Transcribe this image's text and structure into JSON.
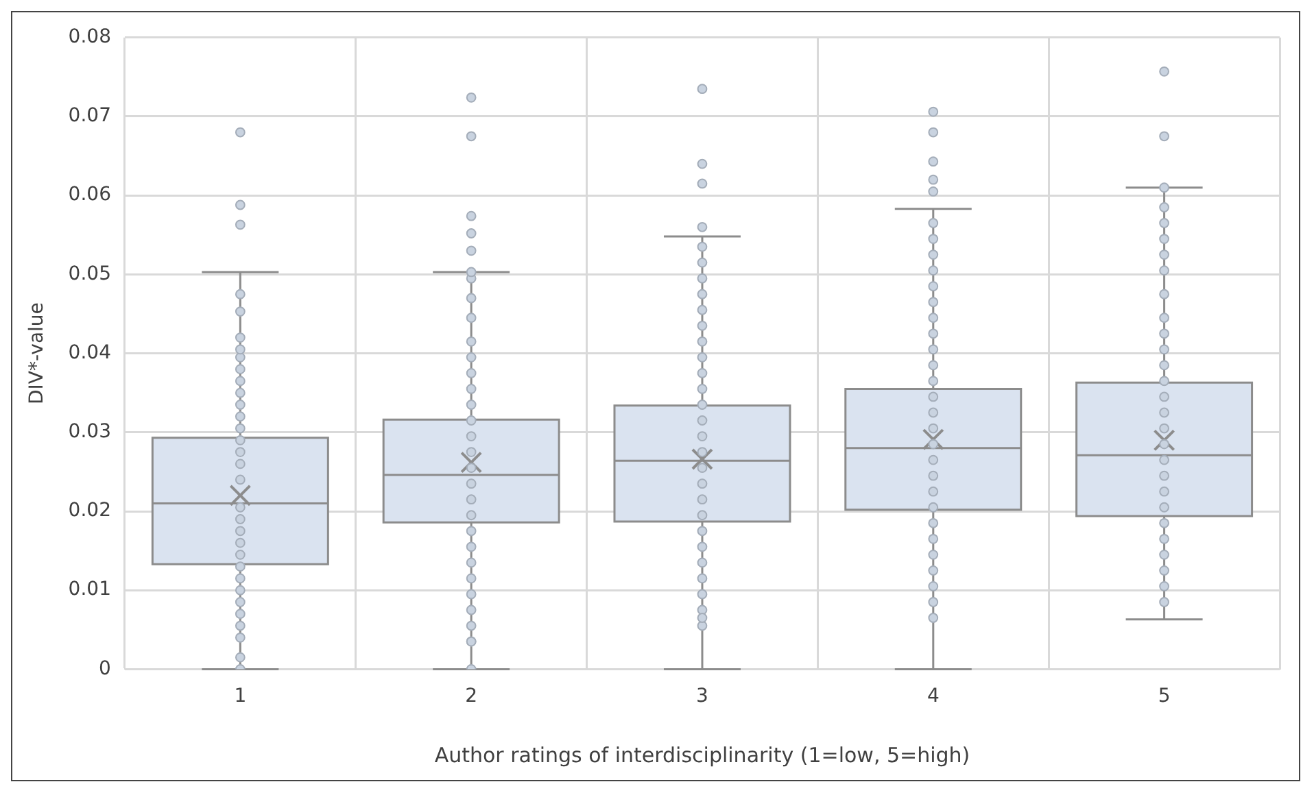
{
  "chart_data": {
    "type": "box",
    "xlabel": "Author ratings of interdisciplinarity (1=low, 5=high)",
    "ylabel": "DIV*-value",
    "categories": [
      "1",
      "2",
      "3",
      "4",
      "5"
    ],
    "boxes": [
      {
        "low": 0,
        "q1": 0.0133,
        "median": 0.021,
        "q3": 0.0293,
        "high": 0.0503,
        "mean": 0.022,
        "outliers": [
          0.068,
          0.0588,
          0.0563
        ]
      },
      {
        "low": 0,
        "q1": 0.0186,
        "median": 0.0246,
        "q3": 0.0316,
        "high": 0.0503,
        "mean": 0.0262,
        "outliers": [
          0.0724,
          0.0675,
          0.0574,
          0.0552,
          0.053
        ]
      },
      {
        "low": 0,
        "q1": 0.0187,
        "median": 0.0264,
        "q3": 0.0334,
        "high": 0.0548,
        "mean": 0.0266,
        "outliers": [
          0.0735,
          0.064,
          0.0615,
          0.056
        ]
      },
      {
        "low": 0,
        "q1": 0.0202,
        "median": 0.028,
        "q3": 0.0355,
        "high": 0.0583,
        "mean": 0.0291,
        "outliers": [
          0.0706,
          0.068,
          0.0643,
          0.062,
          0.0605
        ]
      },
      {
        "low": 0.0063,
        "q1": 0.0194,
        "median": 0.0271,
        "q3": 0.0363,
        "high": 0.061,
        "mean": 0.029,
        "outliers": [
          0.0757,
          0.0675
        ]
      }
    ],
    "color": "#dae3f0",
    "series": [
      {
        "type": "scatter",
        "color": "#c9d3e0",
        "x": [
          "1",
          "1",
          "1",
          "1",
          "1",
          "1",
          "1",
          "1",
          "1",
          "1",
          "1",
          "1",
          "1",
          "1",
          "1",
          "1",
          "1",
          "1",
          "1",
          "1",
          "1",
          "1",
          "1",
          "1",
          "1",
          "1",
          "1",
          "1",
          "1",
          "2",
          "2",
          "2",
          "2",
          "2",
          "2",
          "2",
          "2",
          "2",
          "2",
          "2",
          "2",
          "2",
          "2",
          "2",
          "2",
          "2",
          "2",
          "2",
          "2",
          "2",
          "2",
          "2",
          "2",
          "2",
          "2",
          "3",
          "3",
          "3",
          "3",
          "3",
          "3",
          "3",
          "3",
          "3",
          "3",
          "3",
          "3",
          "3",
          "3",
          "3",
          "3",
          "3",
          "3",
          "3",
          "3",
          "3",
          "3",
          "3",
          "3",
          "3",
          "3",
          "4",
          "4",
          "4",
          "4",
          "4",
          "4",
          "4",
          "4",
          "4",
          "4",
          "4",
          "4",
          "4",
          "4",
          "4",
          "4",
          "4",
          "4",
          "4",
          "4",
          "4",
          "4",
          "4",
          "4",
          "4",
          "4",
          "5",
          "5",
          "5",
          "5",
          "5",
          "5",
          "5",
          "5",
          "5",
          "5",
          "5",
          "5",
          "5",
          "5",
          "5",
          "5",
          "5",
          "5",
          "5",
          "5",
          "5",
          "5",
          "5",
          "5",
          "5",
          "5"
        ],
        "values": [
          0,
          0.0015,
          0.004,
          0.0055,
          0.007,
          0.0085,
          0.01,
          0.0115,
          0.013,
          0.0145,
          0.016,
          0.0175,
          0.019,
          0.0205,
          0.024,
          0.026,
          0.0275,
          0.029,
          0.0305,
          0.032,
          0.0335,
          0.035,
          0.0365,
          0.038,
          0.0395,
          0.0405,
          0.042,
          0.0453,
          0.0475,
          0,
          0.0035,
          0.0055,
          0.0075,
          0.0095,
          0.0115,
          0.0135,
          0.0155,
          0.0175,
          0.0195,
          0.0215,
          0.0235,
          0.0255,
          0.0275,
          0.0295,
          0.0315,
          0.0335,
          0.0355,
          0.0375,
          0.0395,
          0.0415,
          0.0445,
          0.047,
          0.0495,
          0.0503,
          0.0035,
          0.0055,
          0.0075,
          0.0095,
          0.0115,
          0.0135,
          0.0155,
          0.0175,
          0.0195,
          0.0215,
          0.0235,
          0.0255,
          0.0275,
          0.0295,
          0.0315,
          0.0335,
          0.0355,
          0.0375,
          0.0395,
          0.0415,
          0.0435,
          0.0455,
          0.0475,
          0.0495,
          0.0515,
          0.0535,
          0.0065,
          0.0085,
          0.0105,
          0.0125,
          0.0145,
          0.0165,
          0.0185,
          0.0205,
          0.0225,
          0.0245,
          0.0265,
          0.0285,
          0.0305,
          0.0325,
          0.0345,
          0.0365,
          0.0385,
          0.0405,
          0.0425,
          0.0445,
          0.0465,
          0.0485,
          0.0505,
          0.0525,
          0.0545,
          0.0565,
          0.0065,
          0.0085,
          0.0105,
          0.0125,
          0.0145,
          0.0165,
          0.0185,
          0.0205,
          0.0225,
          0.0245,
          0.0265,
          0.0285,
          0.0305,
          0.0325,
          0.0345,
          0.0365,
          0.0385,
          0.0405,
          0.0425,
          0.0445,
          0.0475,
          0.0505,
          0.0525,
          0.0545,
          0.0565,
          0.0585,
          0.061
        ]
      }
    ],
    "ylim": [
      0,
      0.08
    ],
    "yticks": [
      0,
      0.01,
      0.02,
      0.03,
      0.04,
      0.05,
      0.06,
      0.07,
      0.08
    ],
    "grid": true,
    "marker": "circle",
    "legend": false
  }
}
